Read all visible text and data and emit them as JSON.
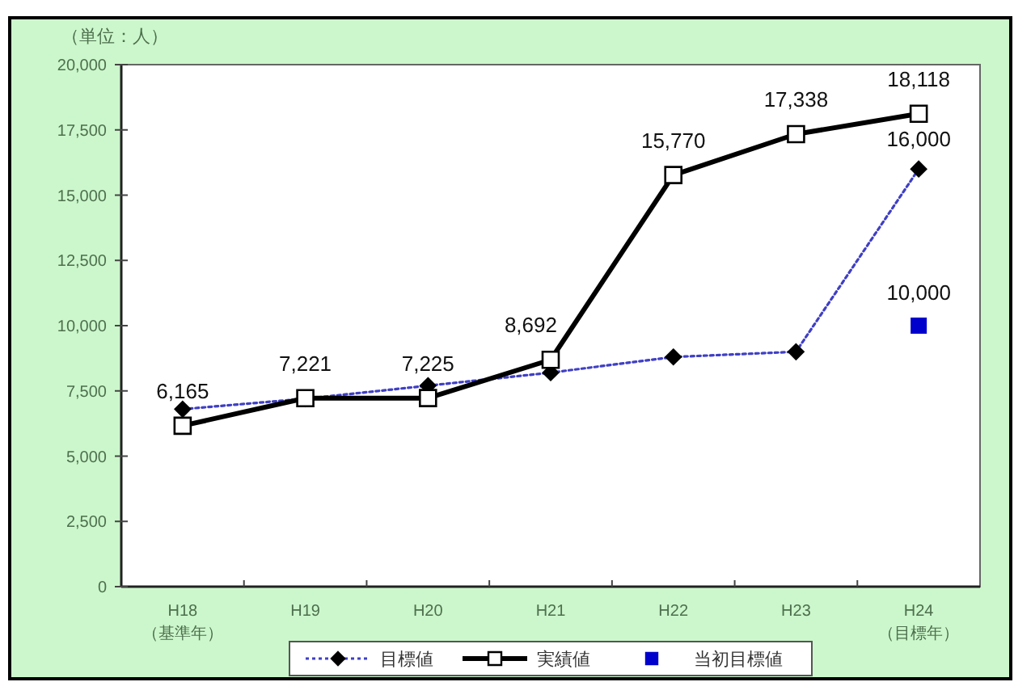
{
  "chart_data": {
    "type": "line",
    "annotations": [
      "（単位：人）"
    ],
    "categories": [
      "H18 （基準年）",
      "H19",
      "H20",
      "H21",
      "H22",
      "H23",
      "H24 （目標年）"
    ],
    "ylim": [
      0,
      20000
    ],
    "yticks": [
      {
        "value": 0,
        "label": "0"
      },
      {
        "value": 2500,
        "label": "2,500"
      },
      {
        "value": 5000,
        "label": "5,000"
      },
      {
        "value": 7500,
        "label": "7,500"
      },
      {
        "value": 10000,
        "label": "10,000"
      },
      {
        "value": 12500,
        "label": "12,500"
      },
      {
        "value": 15000,
        "label": "15,000"
      },
      {
        "value": 17500,
        "label": "17,500"
      },
      {
        "value": 20000,
        "label": "20,000"
      }
    ],
    "legend": "bottom",
    "series": [
      {
        "name": "目標値",
        "color": "#3f3fc4",
        "line_style": "dotted",
        "marker": "diamond",
        "values": [
          6800,
          7200,
          7700,
          8200,
          8800,
          9000,
          16000
        ],
        "value_labels": [
          null,
          null,
          null,
          null,
          null,
          null,
          "16,000"
        ]
      },
      {
        "name": "実績値",
        "color": "#000000",
        "line_style": "solid",
        "marker": "square",
        "values": [
          6165,
          7221,
          7225,
          8692,
          15770,
          17338,
          18118
        ],
        "value_labels": [
          "6,165",
          "7,221",
          "7,225",
          "8,692",
          "15,770",
          "17,338",
          "18,118"
        ]
      },
      {
        "name": "当初目標値",
        "type": "scatter",
        "color": "#0000cc",
        "marker": "square",
        "values": [
          null,
          null,
          null,
          null,
          null,
          null,
          10000
        ],
        "value_labels": [
          null,
          null,
          null,
          null,
          null,
          null,
          "10,000"
        ]
      }
    ]
  }
}
